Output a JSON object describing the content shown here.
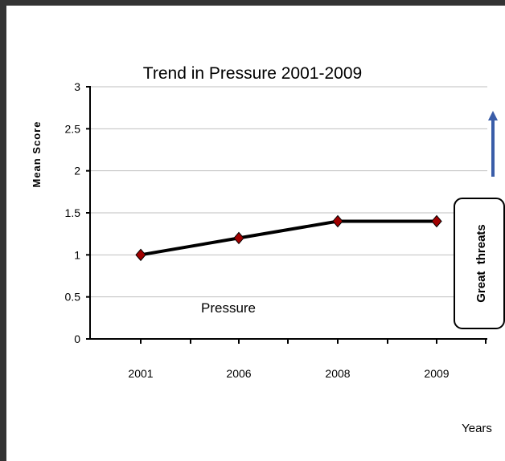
{
  "chart_data": {
    "type": "line",
    "title": "Trend in Pressure 2001-2009",
    "ylabel": "Mean Score",
    "xlabel": "Years",
    "categories": [
      "2001",
      "2006",
      "2008",
      "2009"
    ],
    "series": [
      {
        "name": "Pressure",
        "values": [
          1.0,
          1.2,
          1.4,
          1.4
        ]
      }
    ],
    "ylim": [
      0,
      3
    ],
    "yticks": [
      "0",
      "0.5",
      "1",
      "1.5",
      "2",
      "2.5",
      "3"
    ],
    "grid": true,
    "legend": "none",
    "annotations": {
      "series_label": "Pressure",
      "callout": "Great  threats",
      "arrow": "up"
    },
    "colors": {
      "line": "#000000",
      "marker": "#a00000",
      "grid": "#bfbfbf",
      "arrow": "#3a5da8"
    }
  }
}
